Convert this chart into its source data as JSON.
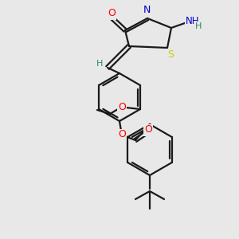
{
  "background_color": "#e8e8e8",
  "bond_color": "#1a1a1a",
  "atom_colors": {
    "O": "#ff0000",
    "N": "#0000cd",
    "S": "#cccc00",
    "H": "#2e8b57",
    "C": "#1a1a1a"
  },
  "figsize": [
    3.0,
    3.0
  ],
  "dpi": 100
}
